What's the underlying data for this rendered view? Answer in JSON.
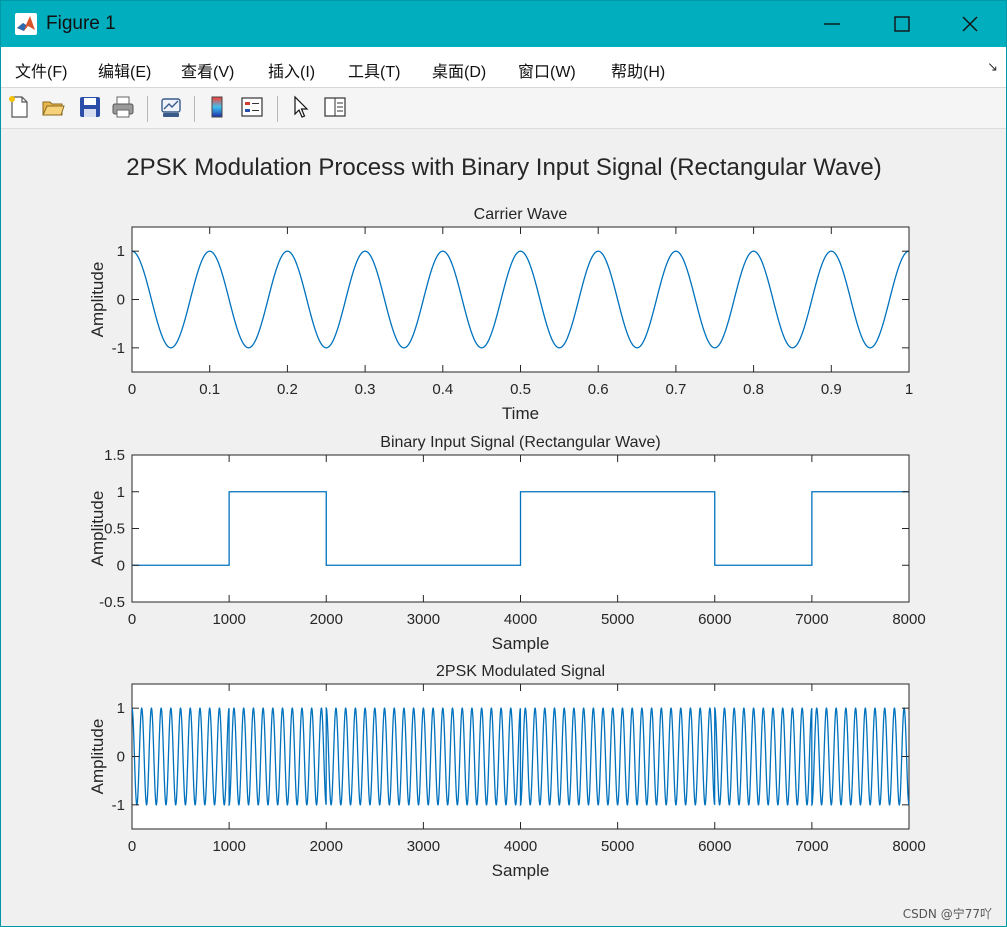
{
  "window": {
    "title": "Figure 1"
  },
  "menu": {
    "items": [
      {
        "label": "文件(F)",
        "name": "menu-file"
      },
      {
        "label": "编辑(E)",
        "name": "menu-edit"
      },
      {
        "label": "查看(V)",
        "name": "menu-view"
      },
      {
        "label": "插入(I)",
        "name": "menu-insert"
      },
      {
        "label": "工具(T)",
        "name": "menu-tools"
      },
      {
        "label": "桌面(D)",
        "name": "menu-desktop"
      },
      {
        "label": "窗口(W)",
        "name": "menu-window"
      },
      {
        "label": "帮助(H)",
        "name": "menu-help"
      }
    ],
    "overflow_glyph": "↘"
  },
  "toolbar": {
    "icons": [
      "new-figure-icon",
      "open-file-icon",
      "save-icon",
      "print-icon",
      "link-plot-icon",
      "insert-colorbar-icon",
      "insert-legend-icon",
      "edit-plot-pointer-icon",
      "property-inspector-icon"
    ]
  },
  "figure": {
    "suptitle": "2PSK Modulation Process with Binary Input Signal (Rectangular Wave)"
  },
  "colors": {
    "line": "#0072bd",
    "titlebar": "#00aebd",
    "axes_bg": "#ffffff",
    "figure_bg": "#f0f0f0"
  },
  "chart_data": [
    {
      "type": "line",
      "title": "Carrier Wave",
      "xlabel": "Time",
      "ylabel": "Amplitude",
      "xlim": [
        0,
        1
      ],
      "ylim": [
        -1.5,
        1.5
      ],
      "xticks": [
        0,
        0.1,
        0.2,
        0.3,
        0.4,
        0.5,
        0.6,
        0.7,
        0.8,
        0.9,
        1
      ],
      "xtick_labels": [
        "0",
        "0.1",
        "0.2",
        "0.3",
        "0.4",
        "0.5",
        "0.6",
        "0.7",
        "0.8",
        "0.9",
        "1"
      ],
      "yticks": [
        -1,
        0,
        1
      ],
      "ytick_labels": [
        "-1",
        "0",
        "1"
      ],
      "grid": false,
      "series": [
        {
          "function": "cosine",
          "amplitude": 1,
          "frequency": 10,
          "x_range": [
            0,
            1
          ]
        }
      ]
    },
    {
      "type": "line",
      "title": "Binary Input Signal (Rectangular Wave)",
      "xlabel": "Sample",
      "ylabel": "Amplitude",
      "xlim": [
        0,
        8000
      ],
      "ylim": [
        -0.5,
        1.5
      ],
      "xticks": [
        0,
        1000,
        2000,
        3000,
        4000,
        5000,
        6000,
        7000,
        8000
      ],
      "xtick_labels": [
        "0",
        "1000",
        "2000",
        "3000",
        "4000",
        "5000",
        "6000",
        "7000",
        "8000"
      ],
      "yticks": [
        -0.5,
        0,
        0.5,
        1,
        1.5
      ],
      "ytick_labels": [
        "-0.5",
        "0",
        "0.5",
        "1",
        "1.5"
      ],
      "grid": false,
      "series": [
        {
          "bits": [
            0,
            1,
            0,
            0,
            1,
            1,
            0,
            1
          ],
          "samples_per_bit": 1000
        }
      ]
    },
    {
      "type": "line",
      "title": "2PSK Modulated Signal",
      "xlabel": "Sample",
      "ylabel": "Amplitude",
      "xlim": [
        0,
        8000
      ],
      "ylim": [
        -1.5,
        1.5
      ],
      "xticks": [
        0,
        1000,
        2000,
        3000,
        4000,
        5000,
        6000,
        7000,
        8000
      ],
      "xtick_labels": [
        "0",
        "1000",
        "2000",
        "3000",
        "4000",
        "5000",
        "6000",
        "7000",
        "8000"
      ],
      "yticks": [
        -1,
        0,
        1
      ],
      "ytick_labels": [
        "-1",
        "0",
        "1"
      ],
      "grid": false,
      "series": [
        {
          "function": "bpsk",
          "amplitude": 1,
          "cycles_per_bit": 10,
          "samples_per_bit": 1000,
          "bits": [
            0,
            1,
            0,
            0,
            1,
            1,
            0,
            1
          ]
        }
      ]
    }
  ],
  "watermark": "CSDN @宁77吖"
}
